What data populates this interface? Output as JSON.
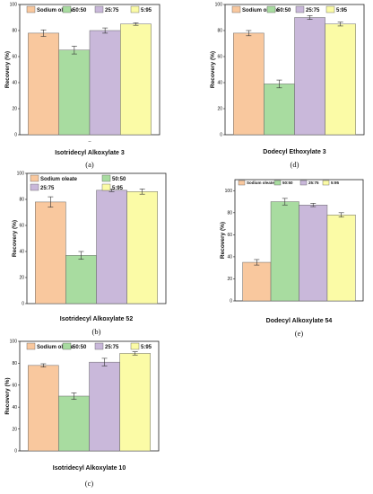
{
  "colors": [
    "#F9C89E",
    "#A8DCA0",
    "#C9B8DA",
    "#FBFBA6"
  ],
  "chart_data": [
    {
      "type": "bar",
      "panel_label": "(a)",
      "xlabel": "Isotridecyl Alkoxylate 3",
      "x_axis_note": "--",
      "ylabel": "Recovery (%)",
      "ylim": [
        0,
        100
      ],
      "yticks": [
        0,
        20,
        40,
        60,
        80,
        100
      ],
      "legend_position": "top",
      "series": [
        {
          "name": "Sodium oleate",
          "value": 78,
          "error": 2.5
        },
        {
          "name": "50:50",
          "value": 65,
          "error": 3
        },
        {
          "name": "25:75",
          "value": 80,
          "error": 2
        },
        {
          "name": "5:95",
          "value": 85,
          "error": 1
        }
      ]
    },
    {
      "type": "bar",
      "panel_label": "(d)",
      "xlabel": "Dodecyl Ethoxylate 3",
      "ylabel": "Recovery (%)",
      "ylim": [
        0,
        100
      ],
      "yticks": [
        0,
        20,
        40,
        60,
        80,
        100
      ],
      "legend_position": "top",
      "series": [
        {
          "name": "Sodium oleate",
          "value": 78,
          "error": 2
        },
        {
          "name": "50:50",
          "value": 39,
          "error": 3
        },
        {
          "name": "25:75",
          "value": 90,
          "error": 1.5
        },
        {
          "name": "5:95",
          "value": 85,
          "error": 1.5
        }
      ]
    },
    {
      "type": "bar",
      "panel_label": "(b)",
      "xlabel": "Isotridecyl Alkoxylate 52",
      "ylabel": "Recovery (%)",
      "ylim": [
        0,
        100
      ],
      "yticks": [
        0,
        20,
        40,
        60,
        80,
        100
      ],
      "legend_position": "top",
      "series": [
        {
          "name": "Sodium oleate",
          "value": 78,
          "error": 4
        },
        {
          "name": "50:50",
          "value": 37,
          "error": 3
        },
        {
          "name": "25:75",
          "value": 87,
          "error": 1
        },
        {
          "name": "5:95",
          "value": 86,
          "error": 2
        }
      ]
    },
    {
      "type": "bar",
      "panel_label": "(e)",
      "xlabel": "Dodecyl Alkoxylate 54",
      "ylabel": "Recovery (%)",
      "ylim": [
        0,
        110
      ],
      "yticks": [
        0,
        20,
        40,
        60,
        80,
        100
      ],
      "legend_position": "top",
      "series": [
        {
          "name": "Sodium oleate",
          "value": 35,
          "error": 2.5
        },
        {
          "name": "50:50",
          "value": 90,
          "error": 3
        },
        {
          "name": "25:75",
          "value": 87,
          "error": 1.5
        },
        {
          "name": "5:95",
          "value": 78,
          "error": 2
        }
      ]
    },
    {
      "type": "bar",
      "panel_label": "(c)",
      "xlabel": "Isotridecyl Alkoxylate 10",
      "ylabel": "Recovery (%)",
      "ylim": [
        0,
        100
      ],
      "yticks": [
        0,
        20,
        40,
        60,
        80,
        100
      ],
      "legend_position": "top",
      "series": [
        {
          "name": "Sodium oleate",
          "value": 78,
          "error": 1.5
        },
        {
          "name": "50:50",
          "value": 50,
          "error": 3
        },
        {
          "name": "25:75",
          "value": 81,
          "error": 3.5
        },
        {
          "name": "5:95",
          "value": 89,
          "error": 1.5
        }
      ]
    }
  ]
}
